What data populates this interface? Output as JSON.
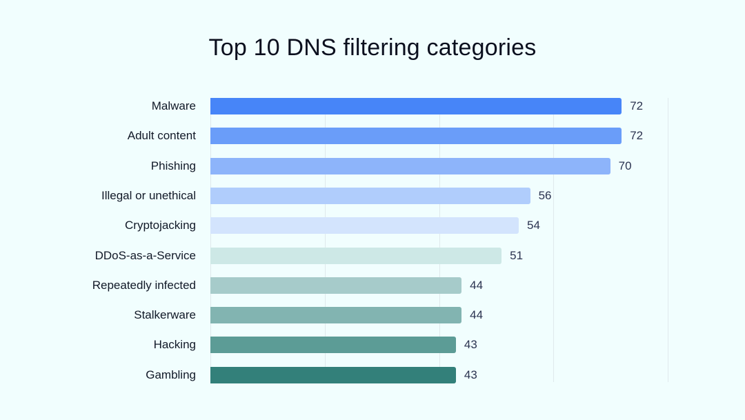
{
  "title": "Top 10 DNS filtering categories",
  "chart_data": {
    "type": "bar",
    "orientation": "horizontal",
    "title": "Top 10 DNS filtering categories",
    "xlabel": "",
    "ylabel": "",
    "categories": [
      "Malware",
      "Adult content",
      "Phishing",
      "Illegal or unethical",
      "Cryptojacking",
      "DDoS-as-a-Service",
      "Repeatedly infected",
      "Stalkerware",
      "Hacking",
      "Gambling"
    ],
    "values": [
      72,
      72,
      70,
      56,
      54,
      51,
      44,
      44,
      43,
      43
    ],
    "colors": [
      "#4785f8",
      "#6a9df9",
      "#8db4fa",
      "#b0cdfc",
      "#d3e4fd",
      "#cde8e6",
      "#a6cbca",
      "#82b4b1",
      "#5c9c96",
      "#33807a"
    ],
    "xlim": [
      0,
      80
    ],
    "grid_x": [
      0,
      20,
      40,
      60,
      80
    ],
    "grid": true,
    "tick_labels_visible": false,
    "data_labels": true,
    "legend": null
  }
}
